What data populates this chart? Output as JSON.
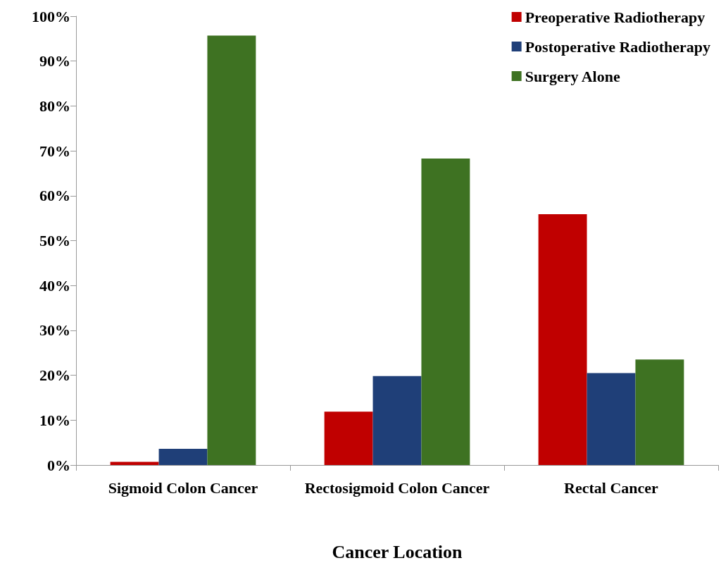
{
  "chart_data": {
    "type": "bar",
    "xlabel": "Cancer Location",
    "categories": [
      "Sigmoid Colon Cancer",
      "Rectosigmoid Colon Cancer",
      "Rectal Cancer"
    ],
    "series": [
      {
        "name": "Preoperative Radiotherapy",
        "color": "#c00000",
        "values": [
          0.7,
          11.9,
          55.9
        ]
      },
      {
        "name": "Postoperative Radiotherapy",
        "color": "#1f3f78",
        "values": [
          3.6,
          19.8,
          20.5
        ]
      },
      {
        "name": "Surgery Alone",
        "color": "#3e7222",
        "values": [
          95.7,
          68.3,
          23.5
        ]
      }
    ],
    "ylim": [
      0,
      100
    ],
    "yticks": [
      {
        "value": 0,
        "label": "0%"
      },
      {
        "value": 10,
        "label": "10%"
      },
      {
        "value": 20,
        "label": "20%"
      },
      {
        "value": 30,
        "label": "30%"
      },
      {
        "value": 40,
        "label": "40%"
      },
      {
        "value": 50,
        "label": "50%"
      },
      {
        "value": 60,
        "label": "60%"
      },
      {
        "value": 70,
        "label": "70%"
      },
      {
        "value": 80,
        "label": "80%"
      },
      {
        "value": 90,
        "label": "90%"
      },
      {
        "value": 100,
        "label": "100%"
      }
    ],
    "grid": false,
    "legend": "top right"
  }
}
